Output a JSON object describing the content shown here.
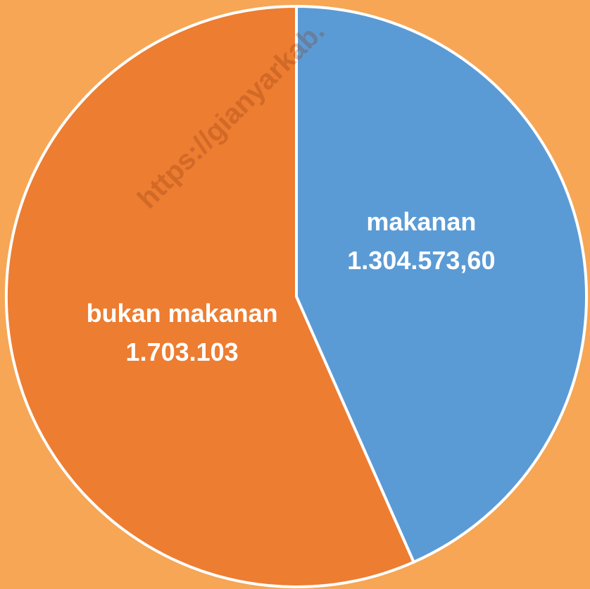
{
  "chart_data": {
    "type": "pie",
    "categories": [
      "makanan",
      "bukan makanan"
    ],
    "values": [
      1304573.6,
      1703103
    ],
    "value_labels": [
      "1.304.573,60",
      "1.703.103"
    ],
    "colors": [
      "#5b9bd5",
      "#ed7d31"
    ],
    "watermark": "https://gianyarkab."
  }
}
